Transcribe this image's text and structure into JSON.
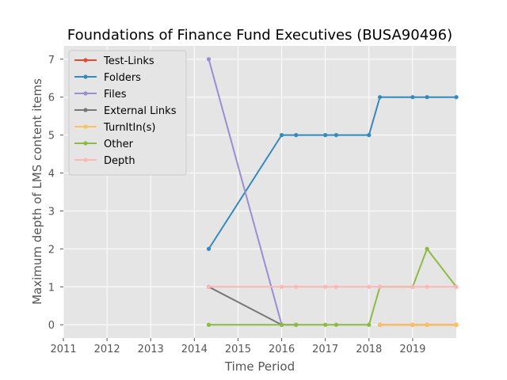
{
  "chart_data": {
    "type": "line",
    "title": "Foundations of Finance Fund Executives (BUSA90496)",
    "xlabel": "Time Period",
    "ylabel": "Maximum depth of LMS content items",
    "xlim": [
      2011,
      2020
    ],
    "ylim": [
      -0.35,
      7.35
    ],
    "x_ticks": [
      2011,
      2012,
      2013,
      2014,
      2015,
      2016,
      2017,
      2018,
      2019
    ],
    "y_ticks": [
      0,
      1,
      2,
      3,
      4,
      5,
      6,
      7
    ],
    "grid": true,
    "legend_position": "upper-left",
    "series": [
      {
        "name": "Test-Links",
        "color": "#E24A33",
        "points": [
          [
            2018.25,
            0
          ],
          [
            2019.0,
            0
          ],
          [
            2019.33,
            0
          ],
          [
            2020.0,
            0
          ]
        ]
      },
      {
        "name": "Folders",
        "color": "#348ABD",
        "points": [
          [
            2014.33,
            2
          ],
          [
            2016.0,
            5
          ],
          [
            2016.33,
            5
          ],
          [
            2017.0,
            5
          ],
          [
            2017.25,
            5
          ],
          [
            2018.0,
            5
          ],
          [
            2018.25,
            6
          ],
          [
            2019.0,
            6
          ],
          [
            2019.33,
            6
          ],
          [
            2020.0,
            6
          ]
        ]
      },
      {
        "name": "Files",
        "color": "#988ED5",
        "points": [
          [
            2014.33,
            7
          ],
          [
            2016.0,
            0
          ]
        ]
      },
      {
        "name": "External Links",
        "color": "#777777",
        "points": [
          [
            2014.33,
            1
          ],
          [
            2016.0,
            0
          ],
          [
            2016.33,
            0
          ]
        ]
      },
      {
        "name": "TurnItIn(s)",
        "color": "#FBC15E",
        "points": [
          [
            2018.25,
            0
          ],
          [
            2019.0,
            0
          ],
          [
            2019.33,
            0
          ],
          [
            2020.0,
            0
          ]
        ]
      },
      {
        "name": "Other",
        "color": "#8EBA42",
        "points": [
          [
            2014.33,
            0
          ],
          [
            2016.0,
            0
          ],
          [
            2016.33,
            0
          ],
          [
            2017.0,
            0
          ],
          [
            2017.25,
            0
          ],
          [
            2018.0,
            0
          ],
          [
            2018.25,
            1
          ],
          [
            2019.0,
            1
          ],
          [
            2019.33,
            2
          ],
          [
            2020.0,
            1
          ]
        ]
      },
      {
        "name": "Depth",
        "color": "#FFB5B8",
        "points": [
          [
            2014.33,
            1
          ],
          [
            2016.0,
            1
          ],
          [
            2016.33,
            1
          ],
          [
            2017.0,
            1
          ],
          [
            2017.25,
            1
          ],
          [
            2018.0,
            1
          ],
          [
            2018.25,
            1
          ],
          [
            2019.0,
            1
          ],
          [
            2019.33,
            1
          ],
          [
            2020.0,
            1
          ]
        ]
      }
    ]
  }
}
